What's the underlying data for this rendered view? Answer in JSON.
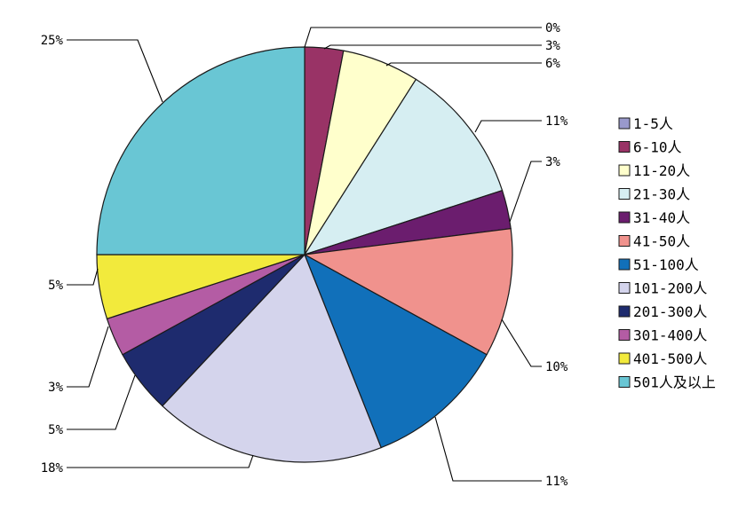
{
  "chart_data": {
    "type": "pie",
    "slices": [
      {
        "label": "1-5人",
        "value": 0,
        "pct_label": "0%",
        "color": "#9999CC"
      },
      {
        "label": "6-10人",
        "value": 3,
        "pct_label": "3%",
        "color": "#993366"
      },
      {
        "label": "11-20人",
        "value": 6,
        "pct_label": "6%",
        "color": "#FFFFCC"
      },
      {
        "label": "21-30人",
        "value": 11,
        "pct_label": "11%",
        "color": "#D6EEF2"
      },
      {
        "label": "31-40人",
        "value": 3,
        "pct_label": "3%",
        "color": "#6B1D6E"
      },
      {
        "label": "41-50人",
        "value": 10,
        "pct_label": "10%",
        "color": "#F0928D"
      },
      {
        "label": "51-100人",
        "value": 11,
        "pct_label": "11%",
        "color": "#1170BA"
      },
      {
        "label": "101-200人",
        "value": 18,
        "pct_label": "18%",
        "color": "#D4D4EC"
      },
      {
        "label": "201-300人",
        "value": 5,
        "pct_label": "5%",
        "color": "#1E2B6E"
      },
      {
        "label": "301-400人",
        "value": 3,
        "pct_label": "3%",
        "color": "#B45CA4"
      },
      {
        "label": "401-500人",
        "value": 5,
        "pct_label": "5%",
        "color": "#F2EA3C"
      },
      {
        "label": "501人及以上",
        "value": 25,
        "pct_label": "25%",
        "color": "#69C6D4"
      }
    ],
    "legend_position": "right"
  }
}
